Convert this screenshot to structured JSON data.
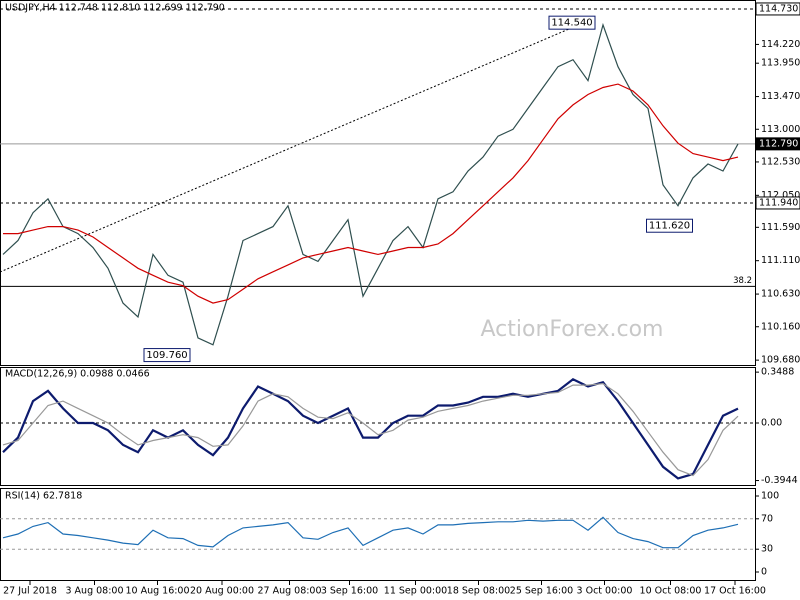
{
  "chart_data": [
    {
      "type": "line",
      "title": "USDJPY,H4  112.748 112.810 112.699 112.790",
      "watermark": "ActionForex.com",
      "ylim": [
        109.61,
        114.83
      ],
      "xlim": [
        0,
        50
      ],
      "yticks": [
        {
          "value": 114.22,
          "label": "114.220"
        },
        {
          "value": 113.95,
          "label": "113.950"
        },
        {
          "value": 113.47,
          "label": "113.470"
        },
        {
          "value": 113.0,
          "label": "113.000"
        },
        {
          "value": 112.53,
          "label": "112.530"
        },
        {
          "value": 112.05,
          "label": "112.050"
        },
        {
          "value": 111.59,
          "label": "111.590"
        },
        {
          "value": 111.11,
          "label": "111.110"
        },
        {
          "value": 110.63,
          "label": "110.630"
        },
        {
          "value": 110.16,
          "label": "110.160"
        },
        {
          "value": 109.68,
          "label": "109.680"
        }
      ],
      "xticks": [
        {
          "value": 1.8,
          "label": "27 Jul 2018"
        },
        {
          "value": 6.1,
          "label": "3 Aug 08:00"
        },
        {
          "value": 10.3,
          "label": "10 Aug 16:00"
        },
        {
          "value": 14.6,
          "label": "20 Aug 00:00"
        },
        {
          "value": 19.1,
          "label": "27 Aug 08:00"
        },
        {
          "value": 23.1,
          "label": "3 Sep 16:00"
        },
        {
          "value": 27.5,
          "label": "11 Sep 00:00"
        },
        {
          "value": 31.7,
          "label": "18 Sep 08:00"
        },
        {
          "value": 35.9,
          "label": "25 Sep 16:00"
        },
        {
          "value": 40.1,
          "label": "3 Oct 00:00"
        },
        {
          "value": 44.5,
          "label": "10 Oct 08:00"
        },
        {
          "value": 48.8,
          "label": "17 Oct 16:00"
        }
      ],
      "hlines": [
        {
          "value": 114.73,
          "label": "114.730",
          "style": "dashed",
          "highlight": false
        },
        {
          "value": 112.79,
          "label": "112.790",
          "style": "solid",
          "highlight": true
        },
        {
          "value": 111.94,
          "label": "111.940",
          "style": "dashed",
          "highlight": false
        }
      ],
      "fib_line": 110.74,
      "fib_label": "38.2",
      "price_labels": [
        {
          "x": 38,
          "value": 114.54,
          "label": "114.540"
        },
        {
          "x": 44.5,
          "value": 111.62,
          "label": "111.620"
        },
        {
          "x": 11,
          "value": 109.76,
          "label": "109.760"
        }
      ],
      "series": [
        {
          "color": "#2f4f4f",
          "values": [
            111.2,
            111.4,
            111.8,
            112.0,
            111.6,
            111.5,
            111.3,
            111.0,
            110.5,
            110.3,
            111.2,
            110.9,
            110.8,
            110.0,
            109.9,
            110.6,
            111.4,
            111.5,
            111.6,
            111.9,
            111.2,
            111.1,
            111.4,
            111.7,
            110.6,
            111.0,
            111.4,
            111.6,
            111.3,
            112.0,
            112.1,
            112.4,
            112.6,
            112.9,
            113.0,
            113.3,
            113.6,
            113.9,
            114.0,
            113.7,
            114.5,
            113.9,
            113.5,
            113.3,
            112.2,
            111.9,
            112.3,
            112.5,
            112.4,
            112.79
          ]
        },
        {
          "color": "#d00000",
          "values": [
            111.5,
            111.5,
            111.55,
            111.6,
            111.6,
            111.55,
            111.45,
            111.3,
            111.15,
            111.0,
            110.9,
            110.8,
            110.75,
            110.6,
            110.5,
            110.55,
            110.7,
            110.85,
            110.95,
            111.05,
            111.15,
            111.2,
            111.25,
            111.3,
            111.25,
            111.2,
            111.25,
            111.3,
            111.3,
            111.35,
            111.5,
            111.7,
            111.9,
            112.1,
            112.3,
            112.55,
            112.85,
            113.15,
            113.35,
            113.5,
            113.6,
            113.65,
            113.55,
            113.35,
            113.05,
            112.8,
            112.65,
            112.6,
            112.55,
            112.6
          ]
        }
      ]
    },
    {
      "type": "line",
      "title": "MACD(12,26,9) 0.0988 0.0466",
      "ylim": [
        -0.425,
        0.384
      ],
      "xlim": [
        0,
        50
      ],
      "yticks": [
        0.3488,
        {
          "value": 0,
          "label": "0.00"
        },
        -0.3944
      ],
      "zero_line": 0,
      "series": [
        {
          "color": "#0d1b6e",
          "values": [
            -0.2,
            -0.1,
            0.15,
            0.22,
            0.1,
            0.0,
            0.0,
            -0.05,
            -0.15,
            -0.2,
            -0.05,
            -0.1,
            -0.05,
            -0.15,
            -0.22,
            -0.1,
            0.1,
            0.25,
            0.2,
            0.15,
            0.05,
            0.0,
            0.05,
            0.1,
            -0.1,
            -0.1,
            0.0,
            0.05,
            0.05,
            0.12,
            0.12,
            0.14,
            0.18,
            0.18,
            0.2,
            0.18,
            0.2,
            0.22,
            0.3,
            0.25,
            0.28,
            0.15,
            0.0,
            -0.15,
            -0.3,
            -0.38,
            -0.35,
            -0.15,
            0.05,
            0.0988
          ]
        },
        {
          "color": "#999999",
          "values": [
            -0.15,
            -0.12,
            0.0,
            0.12,
            0.15,
            0.1,
            0.05,
            0.0,
            -0.08,
            -0.15,
            -0.12,
            -0.1,
            -0.08,
            -0.1,
            -0.16,
            -0.15,
            -0.02,
            0.15,
            0.2,
            0.18,
            0.1,
            0.04,
            0.03,
            0.07,
            0.0,
            -0.08,
            -0.05,
            0.02,
            0.04,
            0.08,
            0.1,
            0.12,
            0.15,
            0.17,
            0.19,
            0.19,
            0.2,
            0.21,
            0.26,
            0.26,
            0.27,
            0.2,
            0.08,
            -0.06,
            -0.2,
            -0.32,
            -0.36,
            -0.25,
            -0.05,
            0.0466
          ]
        }
      ]
    },
    {
      "type": "line",
      "title": "RSI(14) 62.7818",
      "ylim": [
        0,
        100
      ],
      "xlim": [
        0,
        50
      ],
      "yticks": [
        100,
        70,
        30,
        0
      ],
      "dashed_levels": [
        70,
        30
      ],
      "series": [
        {
          "color": "#1e6fb5",
          "values": [
            45,
            50,
            60,
            65,
            50,
            48,
            45,
            42,
            38,
            36,
            55,
            45,
            44,
            35,
            33,
            48,
            58,
            60,
            62,
            65,
            45,
            43,
            52,
            58,
            35,
            45,
            55,
            58,
            50,
            62,
            62,
            64,
            65,
            66,
            66,
            68,
            67,
            68,
            68,
            55,
            72,
            52,
            44,
            40,
            32,
            32,
            48,
            55,
            58,
            62.7818
          ]
        }
      ]
    }
  ]
}
